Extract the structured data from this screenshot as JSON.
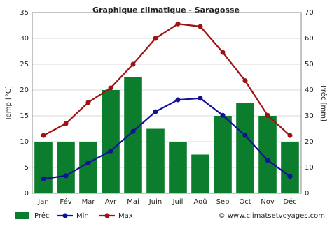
{
  "chart_data": {
    "type": "bar",
    "title": "Graphique climatique - Saragosse",
    "y_label": "Temp [°C]",
    "y2_label": "Préc [mm]",
    "source": "© www.climatsetvoyages.com",
    "categories": [
      "Jan",
      "Fév",
      "Mar",
      "Avr",
      "Mai",
      "Juin",
      "Juil",
      "Aoû",
      "Sep",
      "Oct",
      "Nov",
      "Déc"
    ],
    "series": [
      {
        "name": "Préc",
        "type": "bar",
        "axis": "y2",
        "color": "#0b7d2c",
        "values": [
          20,
          20,
          20,
          40,
          45,
          25,
          20,
          15,
          30,
          35,
          30,
          20
        ]
      },
      {
        "name": "Min",
        "type": "line",
        "color": "#10109a",
        "values": [
          2.8,
          3.4,
          5.9,
          8.2,
          12.0,
          15.8,
          18.1,
          18.4,
          15.1,
          11.2,
          6.4,
          3.3
        ]
      },
      {
        "name": "Max",
        "type": "line",
        "color": "#a01212",
        "values": [
          11.2,
          13.5,
          17.6,
          20.4,
          25.0,
          30.0,
          32.8,
          32.3,
          27.3,
          21.8,
          15.1,
          11.2
        ]
      }
    ],
    "ylim": [
      0,
      35
    ],
    "yticks": [
      0,
      5,
      10,
      15,
      20,
      25,
      30,
      35
    ],
    "y2lim": [
      0,
      70
    ],
    "y2ticks": [
      0,
      10,
      20,
      30,
      40,
      50,
      60,
      70
    ],
    "grid": true
  }
}
